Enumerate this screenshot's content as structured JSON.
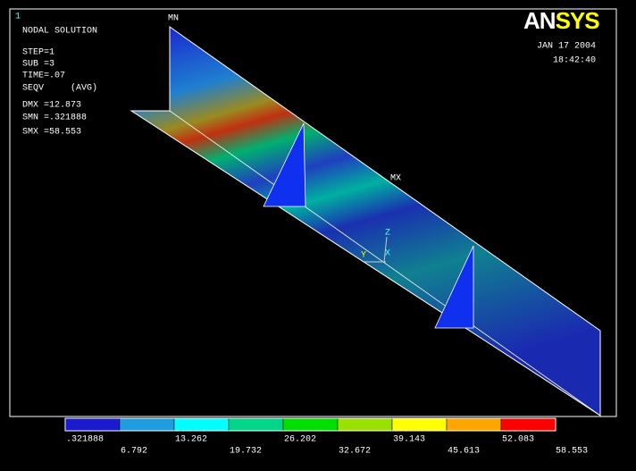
{
  "window_number": "1",
  "info_lines": [
    "NODAL SOLUTION",
    "STEP=1",
    "SUB =3",
    "TIME=.07",
    "SEQV     (AVG)",
    "DMX =12.873",
    "SMN =.321888",
    "SMX =58.553"
  ],
  "logo_parts": [
    "AN",
    "SYS"
  ],
  "date": "JAN 17 2004",
  "time": "18:42:40",
  "model_labels": {
    "min": "MN",
    "max": "MX"
  },
  "triad": {
    "y": "Y",
    "z": "Z",
    "x": "X"
  },
  "legend": {
    "colors": [
      "#1a1acf",
      "#1f9de0",
      "#00ffff",
      "#00d68a",
      "#00e000",
      "#9ae000",
      "#ffff00",
      "#ffa500",
      "#ff0000"
    ],
    "labels": [
      ".321888",
      "6.792",
      "13.262",
      "19.732",
      "26.202",
      "32.672",
      "39.143",
      "45.613",
      "52.083",
      "58.553"
    ]
  }
}
